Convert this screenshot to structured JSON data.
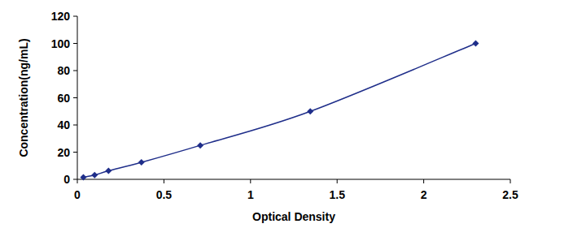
{
  "chart_data": {
    "type": "line",
    "x_label": "Optical Density",
    "y_label": "Concentration(ng/mL)",
    "x": [
      0.035,
      0.1,
      0.18,
      0.37,
      0.71,
      1.345,
      2.3
    ],
    "values": [
      1.56,
      3.12,
      6.25,
      12.5,
      25,
      50,
      100
    ],
    "color": "#1f2e8a",
    "marker": "diamond",
    "line_style": "solid",
    "xlim": [
      0,
      2.5
    ],
    "xticks": [
      0,
      0.5,
      1,
      1.5,
      2,
      2.5
    ],
    "ylim": [
      0,
      120
    ],
    "yticks": [
      0,
      20,
      40,
      60,
      80,
      100,
      120
    ],
    "grid": false
  }
}
